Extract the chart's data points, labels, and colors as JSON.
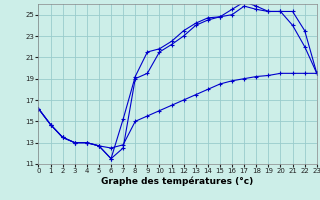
{
  "xlabel": "Graphe des températures (°c)",
  "bg_color": "#cceee8",
  "line_color": "#0000cc",
  "grid_color": "#99cccc",
  "xlim": [
    0,
    23
  ],
  "ylim": [
    11,
    26
  ],
  "xticks": [
    0,
    1,
    2,
    3,
    4,
    5,
    6,
    7,
    8,
    9,
    10,
    11,
    12,
    13,
    14,
    15,
    16,
    17,
    18,
    19,
    20,
    21,
    22,
    23
  ],
  "yticks": [
    11,
    13,
    15,
    17,
    19,
    21,
    23,
    25
  ],
  "series1_x": [
    0,
    1,
    2,
    3,
    4,
    5,
    6,
    7,
    8,
    9,
    10,
    11,
    12,
    13,
    14,
    15,
    16,
    17,
    18,
    19,
    20,
    21,
    22,
    23
  ],
  "series1_y": [
    16.2,
    14.7,
    13.5,
    13.0,
    13.0,
    12.7,
    11.5,
    12.5,
    19.0,
    19.5,
    21.5,
    22.2,
    23.0,
    24.0,
    24.5,
    24.8,
    25.0,
    25.8,
    25.5,
    25.3,
    25.3,
    24.0,
    22.0,
    19.5
  ],
  "series2_x": [
    0,
    1,
    2,
    3,
    4,
    5,
    6,
    7,
    8,
    9,
    10,
    11,
    12,
    13,
    14,
    15,
    16,
    17,
    18,
    19,
    20,
    21,
    22,
    23
  ],
  "series2_y": [
    16.2,
    14.7,
    13.5,
    13.0,
    13.0,
    12.7,
    11.5,
    15.2,
    19.2,
    21.5,
    21.8,
    22.5,
    23.5,
    24.2,
    24.7,
    24.8,
    25.5,
    26.2,
    25.8,
    25.3,
    25.3,
    25.3,
    23.5,
    19.5
  ],
  "series3_x": [
    0,
    1,
    2,
    3,
    4,
    5,
    6,
    7,
    8,
    9,
    10,
    11,
    12,
    13,
    14,
    15,
    16,
    17,
    18,
    19,
    20,
    21,
    22,
    23
  ],
  "series3_y": [
    16.2,
    14.7,
    13.5,
    13.0,
    13.0,
    12.7,
    12.5,
    12.8,
    15.0,
    15.5,
    16.0,
    16.5,
    17.0,
    17.5,
    18.0,
    18.5,
    18.8,
    19.0,
    19.2,
    19.3,
    19.5,
    19.5,
    19.5,
    19.5
  ],
  "marker": "+"
}
